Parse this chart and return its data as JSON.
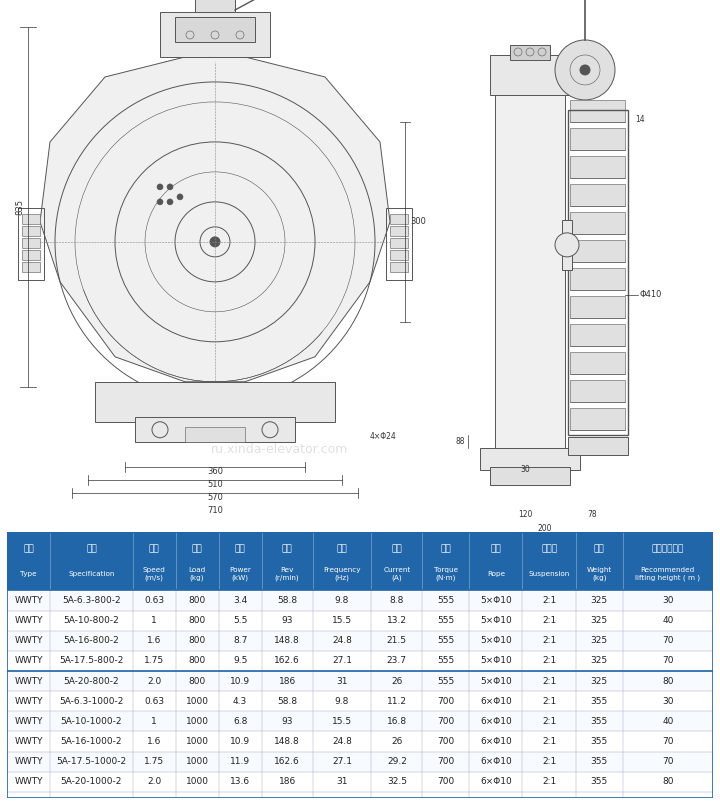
{
  "bg_color": "#ffffff",
  "table_header_bg": "#2166a8",
  "table_header_color": "#ffffff",
  "table_row_bg1": "#ffffff",
  "table_row_bg2": "#f5f5f5",
  "table_border_color": "#2166a8",
  "table_separator_color": "#2166a8",
  "header_row": [
    [
      "型号\nType",
      "规格\nSpecification",
      "梯速\nSpeed\n(m/s)",
      "载重\nLoad\n(kg)",
      "功率\nPower\n(kW)",
      "转速\nRev\n(r/min)",
      "频率\nFrequency\n(Hz)",
      "电流\nCurrent\n(A)",
      "转矩\nTorque\n(N·m)",
      "绳规\nRope",
      "曳引比\nSuspension",
      "自重\nWeight\n(kg)",
      "推荐提升高度\nRecommended\nlifting height ( m )"
    ],
    [
      "型号\nType",
      "规格\nSpecification",
      "梯速\nSpeed\n(m/s)",
      "载重\nLoad\n(kg)",
      "功率\nPower\n(kW)",
      "转速\nRev\n(r/min)",
      "频率\nFrequency\n(Hz)",
      "电流\nCurrent\n(A)",
      "转矩\nTorque\n(N·m)",
      "绳规\nRope",
      "曳引比\nSuspension",
      "自重\nWeight\n(kg)",
      "推荐提升高度\nRecommended\nlifting height ( m )"
    ]
  ],
  "col_headers_cn": [
    "型号",
    "规格",
    "梯速",
    "载重",
    "功率",
    "转速",
    "频率",
    "电流",
    "转矩",
    "绳规",
    "曳引比",
    "自重",
    "推荐提升高度"
  ],
  "col_headers_en": [
    "Type",
    "Specification",
    "Speed\n(m/s)",
    "Load\n(kg)",
    "Power\n(kW)",
    "Rev\n(r/min)",
    "Frequency\n(Hz)",
    "Current\n(A)",
    "Torque\n(N·m)",
    "Rope",
    "Suspension",
    "Weight\n(kg)",
    "Recommended\nlifting height ( m )"
  ],
  "rows": [
    [
      "WWTY",
      "5A-6.3-800-2",
      "0.63",
      "800",
      "3.4",
      "58.8",
      "9.8",
      "8.8",
      "555",
      "5×Φ10",
      "2:1",
      "325",
      "30"
    ],
    [
      "WWTY",
      "5A-10-800-2",
      "1",
      "800",
      "5.5",
      "93",
      "15.5",
      "13.2",
      "555",
      "5×Φ10",
      "2:1",
      "325",
      "40"
    ],
    [
      "WWTY",
      "5A-16-800-2",
      "1.6",
      "800",
      "8.7",
      "148.8",
      "24.8",
      "21.5",
      "555",
      "5×Φ10",
      "2:1",
      "325",
      "70"
    ],
    [
      "WWTY",
      "5A-17.5-800-2",
      "1.75",
      "800",
      "9.5",
      "162.6",
      "27.1",
      "23.7",
      "555",
      "5×Φ10",
      "2:1",
      "325",
      "70"
    ],
    [
      "WWTY",
      "5A-20-800-2",
      "2.0",
      "800",
      "10.9",
      "186",
      "31",
      "26",
      "555",
      "5×Φ10",
      "2:1",
      "325",
      "80"
    ],
    [
      "WWTY",
      "5A-6.3-1000-2",
      "0.63",
      "1000",
      "4.3",
      "58.8",
      "9.8",
      "11.2",
      "700",
      "6×Φ10",
      "2:1",
      "355",
      "30"
    ],
    [
      "WWTY",
      "5A-10-1000-2",
      "1",
      "1000",
      "6.8",
      "93",
      "15.5",
      "16.8",
      "700",
      "6×Φ10",
      "2:1",
      "355",
      "40"
    ],
    [
      "WWTY",
      "5A-16-1000-2",
      "1.6",
      "1000",
      "10.9",
      "148.8",
      "24.8",
      "26",
      "700",
      "6×Φ10",
      "2:1",
      "355",
      "70"
    ],
    [
      "WWTY",
      "5A-17.5-1000-2",
      "1.75",
      "1000",
      "11.9",
      "162.6",
      "27.1",
      "29.2",
      "700",
      "6×Φ10",
      "2:1",
      "355",
      "70"
    ],
    [
      "WWTY",
      "5A-20-1000-2",
      "2.0",
      "1000",
      "13.6",
      "186",
      "31",
      "32.5",
      "700",
      "6×Φ10",
      "2:1",
      "355",
      "80"
    ]
  ],
  "separator_after_row": 4,
  "drawing_image_placeholder": true,
  "drawing_bg": "#f8f8f8",
  "watermark": "ru.xinda-elevator.com"
}
